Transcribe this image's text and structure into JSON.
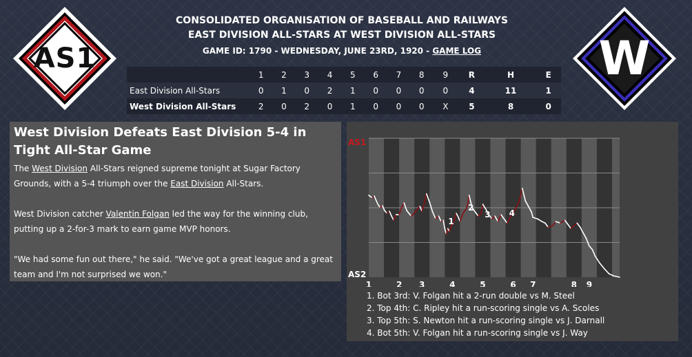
{
  "away_logo": {
    "text": "AS1",
    "border_color": "#b0161d"
  },
  "home_logo": {
    "text": "W",
    "border_color": "#3a2fb8"
  },
  "header": {
    "league": "CONSOLIDATED ORGANISATION OF BASEBALL AND RAILWAYS",
    "matchup": "EAST DIVISION ALL-STARS AT WEST DIVISION ALL-STARS",
    "game_info": "GAME ID: 1790 - WEDNESDAY, JUNE 23RD, 1920 - ",
    "game_log_link": "GAME LOG"
  },
  "linescore": {
    "columns": [
      "1",
      "2",
      "3",
      "4",
      "5",
      "6",
      "7",
      "8",
      "9",
      "R",
      "H",
      "E"
    ],
    "rows": [
      {
        "team": "East Division All-Stars",
        "cells": [
          "0",
          "1",
          "0",
          "2",
          "1",
          "0",
          "0",
          "0",
          "0",
          "4",
          "11",
          "1"
        ]
      },
      {
        "team": "West Division All-Stars",
        "cells": [
          "2",
          "0",
          "2",
          "0",
          "1",
          "0",
          "0",
          "0",
          "X",
          "5",
          "8",
          "0"
        ]
      }
    ]
  },
  "story": {
    "headline": "West Division Defeats East Division 5-4 in Tight All-Star Game",
    "p1": {
      "a": "The ",
      "link1": "West Division",
      "b": " All-Stars reigned supreme tonight at Sugar Factory Grounds, with a 5-4 triumph over the ",
      "link2": "East Division",
      "c": " All-Stars."
    },
    "p2": {
      "a": "West Division catcher ",
      "link": "Valentin Folgan",
      "b": " led the way for the winning club, putting up a 2-for-3 mark to earn game MVP honors."
    },
    "p3": "\"We had some fun out there,\" he said. \"We've got a great league and a great team and I'm not surprised we won.\""
  },
  "chart_data": {
    "type": "line",
    "title": "",
    "top_label": "AS1",
    "bottom_label": "AS2",
    "x_ticks": [
      "1",
      "2",
      "3",
      "4",
      "5",
      "6",
      "7",
      "8",
      "9"
    ],
    "x_tick_positions": [
      1,
      2,
      2.75,
      3.75,
      4.75,
      5.75,
      6.4,
      7.75,
      8.25
    ],
    "xlim": [
      1,
      9.25
    ],
    "ylim": [
      -1,
      1
    ],
    "grid": true,
    "colors": {
      "home_trend": "#ffffff",
      "away_trend": "#8a0f14",
      "label_top": "#c8181f"
    },
    "series": [
      {
        "x": [
          1.0,
          1.12,
          1.18,
          1.25,
          1.3,
          1.38,
          1.45,
          1.52,
          1.6,
          1.68,
          1.75,
          1.82,
          1.9,
          1.95,
          2.0,
          2.08,
          2.16,
          2.25,
          2.32,
          2.4,
          2.5,
          2.6,
          2.68,
          2.75,
          2.82,
          2.9,
          3.0,
          3.1,
          3.2,
          3.3,
          3.38,
          3.45,
          3.5,
          3.55,
          3.6,
          3.65,
          3.7,
          3.75,
          3.8,
          3.88,
          3.95,
          4.0,
          4.1,
          4.2,
          4.25,
          4.3,
          4.4,
          4.5,
          4.6,
          4.7,
          4.75,
          4.85,
          4.95,
          5.05,
          5.15,
          5.25,
          5.35,
          5.45,
          5.55,
          5.65,
          5.75,
          5.85,
          5.95,
          6.05,
          6.15,
          6.25,
          6.35,
          6.4,
          6.55,
          6.7,
          6.8,
          6.9,
          7.05,
          7.15,
          7.3,
          7.45,
          7.55,
          7.65,
          7.75,
          7.85,
          7.95,
          8.05,
          8.15,
          8.25,
          8.35,
          8.45,
          8.6,
          8.75,
          8.9,
          9.05,
          9.25
        ],
        "y": [
          0.18,
          0.14,
          0.17,
          0.1,
          0.05,
          0.0,
          0.03,
          -0.04,
          -0.08,
          -0.05,
          -0.12,
          -0.18,
          -0.1,
          -0.1,
          -0.1,
          0.0,
          0.07,
          -0.04,
          -0.08,
          -0.12,
          -0.08,
          -0.02,
          0.02,
          -0.05,
          0.05,
          0.2,
          0.08,
          -0.06,
          -0.16,
          -0.12,
          -0.2,
          -0.18,
          -0.3,
          -0.38,
          -0.3,
          -0.34,
          -0.28,
          -0.24,
          -0.2,
          -0.08,
          -0.14,
          -0.2,
          -0.08,
          -0.02,
          0.04,
          0.18,
          0.0,
          -0.06,
          -0.12,
          -0.08,
          0.05,
          -0.02,
          -0.1,
          -0.16,
          -0.12,
          -0.2,
          -0.1,
          -0.16,
          -0.22,
          -0.14,
          -0.08,
          0.0,
          0.1,
          0.28,
          0.1,
          0.02,
          -0.06,
          -0.14,
          -0.16,
          -0.2,
          -0.22,
          -0.28,
          -0.26,
          -0.2,
          -0.22,
          -0.18,
          -0.24,
          -0.3,
          -0.26,
          -0.22,
          -0.28,
          -0.36,
          -0.44,
          -0.55,
          -0.6,
          -0.7,
          -0.8,
          -0.88,
          -0.95,
          -0.98,
          -1.0
        ]
      }
    ],
    "annotations": [
      {
        "label": "1",
        "x": 3.75,
        "y": -0.2
      },
      {
        "label": "2",
        "x": 4.4,
        "y": 0.0
      },
      {
        "label": "3",
        "x": 4.95,
        "y": -0.1
      },
      {
        "label": "4",
        "x": 5.75,
        "y": -0.08
      }
    ],
    "notes": [
      "1. Bot 3rd: V. Folgan hit a 2-run double vs M. Steel",
      "2. Top 4th: C. Ripley hit a run-scoring single vs A. Scoles",
      "3. Top 5th: S. Newton hit a run-scoring single vs J. Darnall",
      "4. Bot 5th: V. Folgan hit a run-scoring single vs J. Way"
    ]
  }
}
